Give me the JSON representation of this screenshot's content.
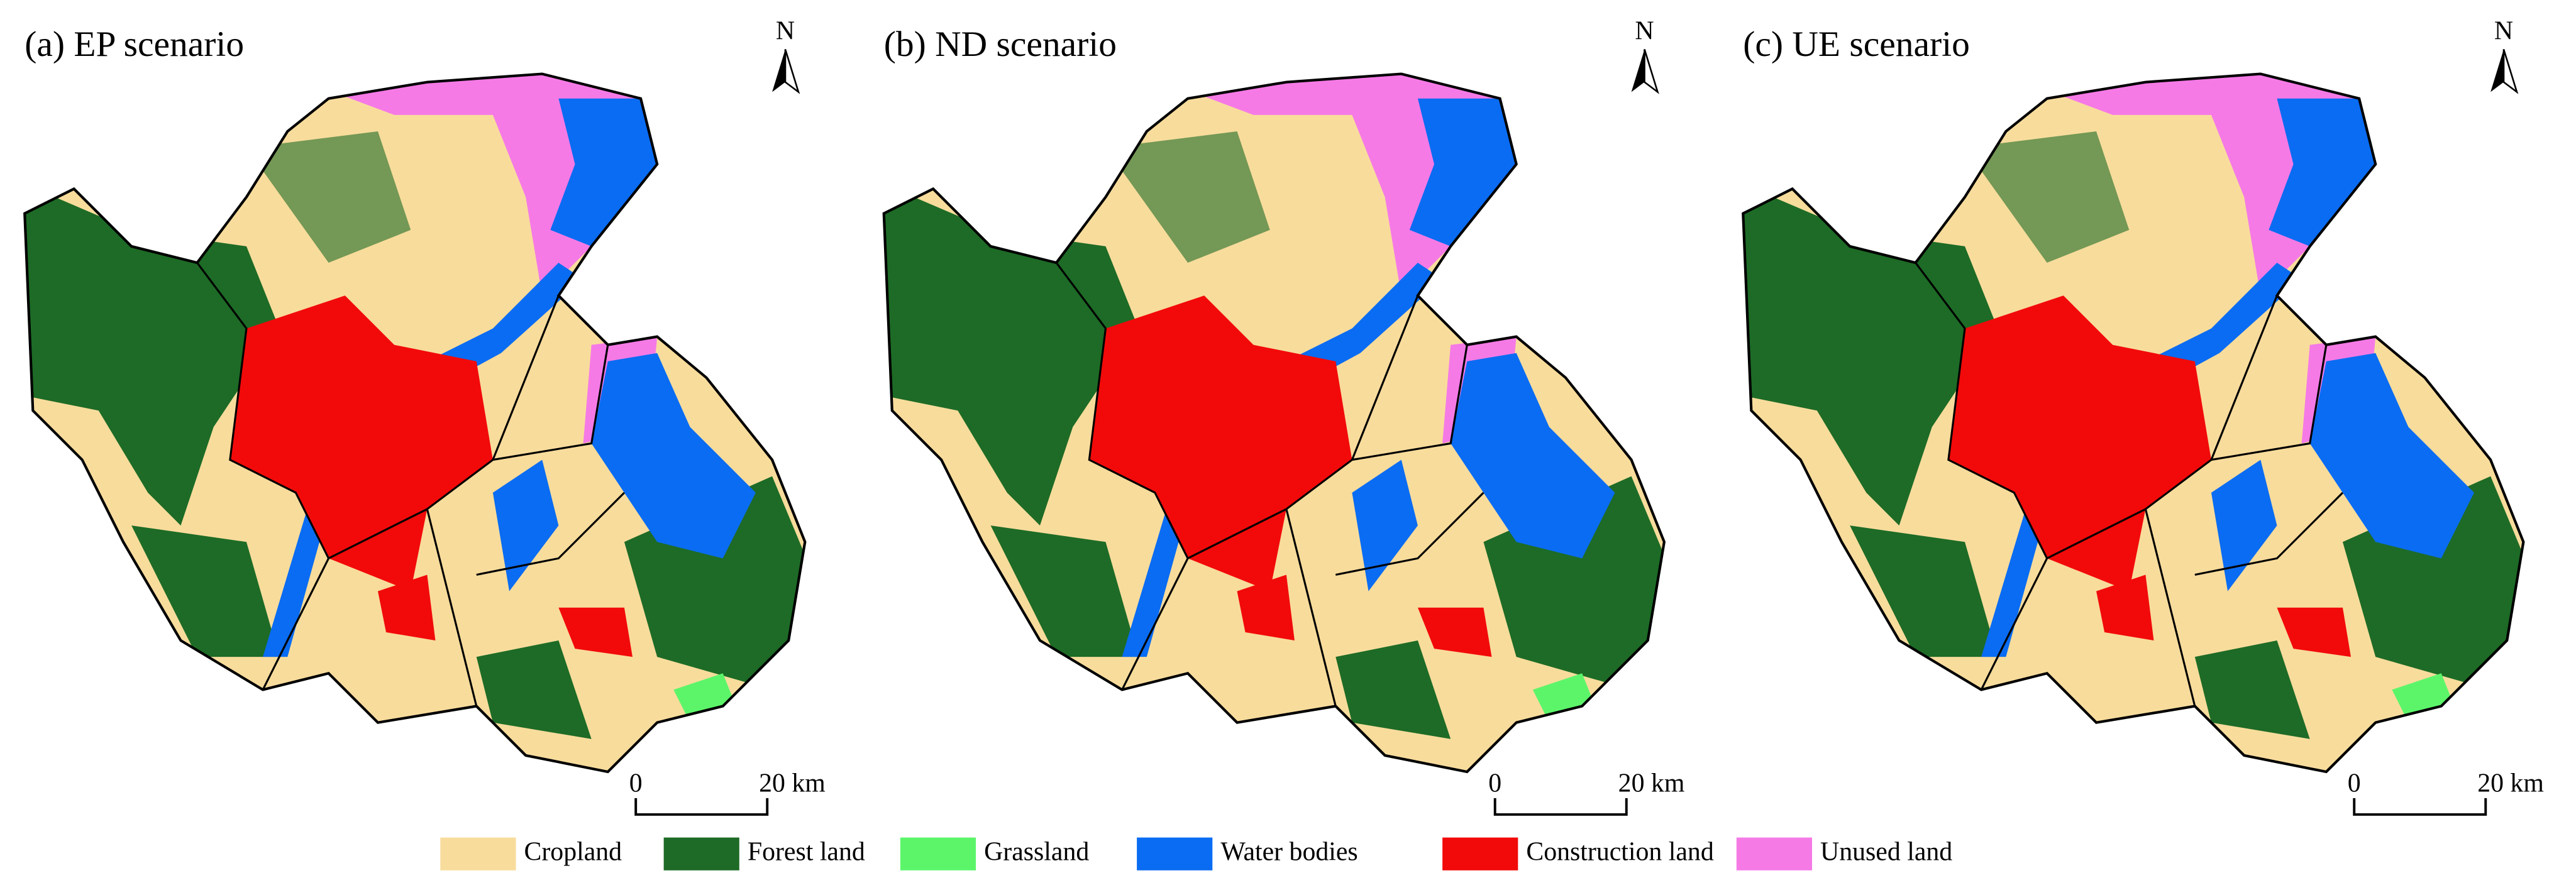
{
  "panels": [
    {
      "title": "(a) EP scenario",
      "north": "N",
      "scale_start": "0",
      "scale_end": "20 km"
    },
    {
      "title": "(b) ND scenario",
      "north": "N",
      "scale_start": "0",
      "scale_end": "20 km"
    },
    {
      "title": "(c) UE scenario",
      "north": "N",
      "scale_start": "0",
      "scale_end": "20 km"
    }
  ],
  "legend": [
    {
      "label": "Cropland",
      "color": "#f8dc9c"
    },
    {
      "label": "Forest land",
      "color": "#1d6b26"
    },
    {
      "label": "Grassland",
      "color": "#5cf56a"
    },
    {
      "label": "Water bodies",
      "color": "#0a6cf2"
    },
    {
      "label": "Construction land",
      "color": "#f20a0a"
    },
    {
      "label": "Unused land",
      "color": "#f57ae6"
    }
  ]
}
